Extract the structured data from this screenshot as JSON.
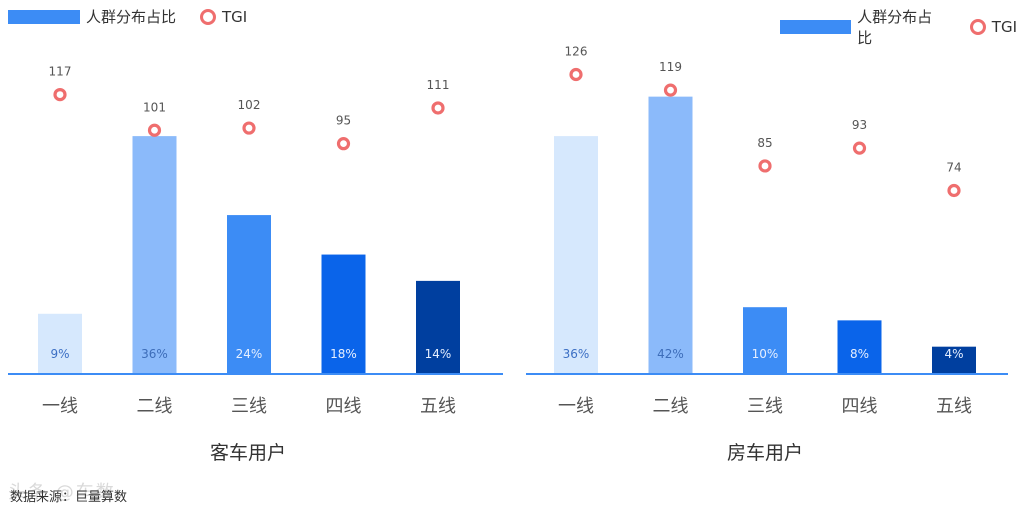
{
  "legend": {
    "bar_label": "人群分布占比",
    "tgi_label": "TGI"
  },
  "colors": {
    "bars": [
      "#d6e8fd",
      "#8bbafa",
      "#3c8cf5",
      "#0a64ea",
      "#003f9f"
    ],
    "tgi": "#ef6e6e",
    "axis": "#3c8cf5"
  },
  "chart_data": [
    {
      "type": "bar",
      "title": "客车用户",
      "categories": [
        "一线",
        "二线",
        "三线",
        "四线",
        "五线"
      ],
      "series": [
        {
          "name": "人群分布占比",
          "values": [
            9,
            36,
            24,
            18,
            14
          ],
          "labels": [
            "9%",
            "36%",
            "24%",
            "18%",
            "14%"
          ]
        },
        {
          "name": "TGI",
          "type": "scatter",
          "values": [
            117,
            101,
            102,
            95,
            111
          ]
        }
      ]
    },
    {
      "type": "bar",
      "title": "房车用户",
      "categories": [
        "一线",
        "二线",
        "三线",
        "四线",
        "五线"
      ],
      "series": [
        {
          "name": "人群分布占比",
          "values": [
            36,
            42,
            10,
            8,
            4
          ],
          "labels": [
            "36%",
            "42%",
            "10%",
            "8%",
            "4%"
          ]
        },
        {
          "name": "TGI",
          "type": "scatter",
          "values": [
            126,
            119,
            85,
            93,
            74
          ]
        }
      ]
    }
  ],
  "source": "数据来源：巨量算数",
  "watermark": "头条 @车数"
}
